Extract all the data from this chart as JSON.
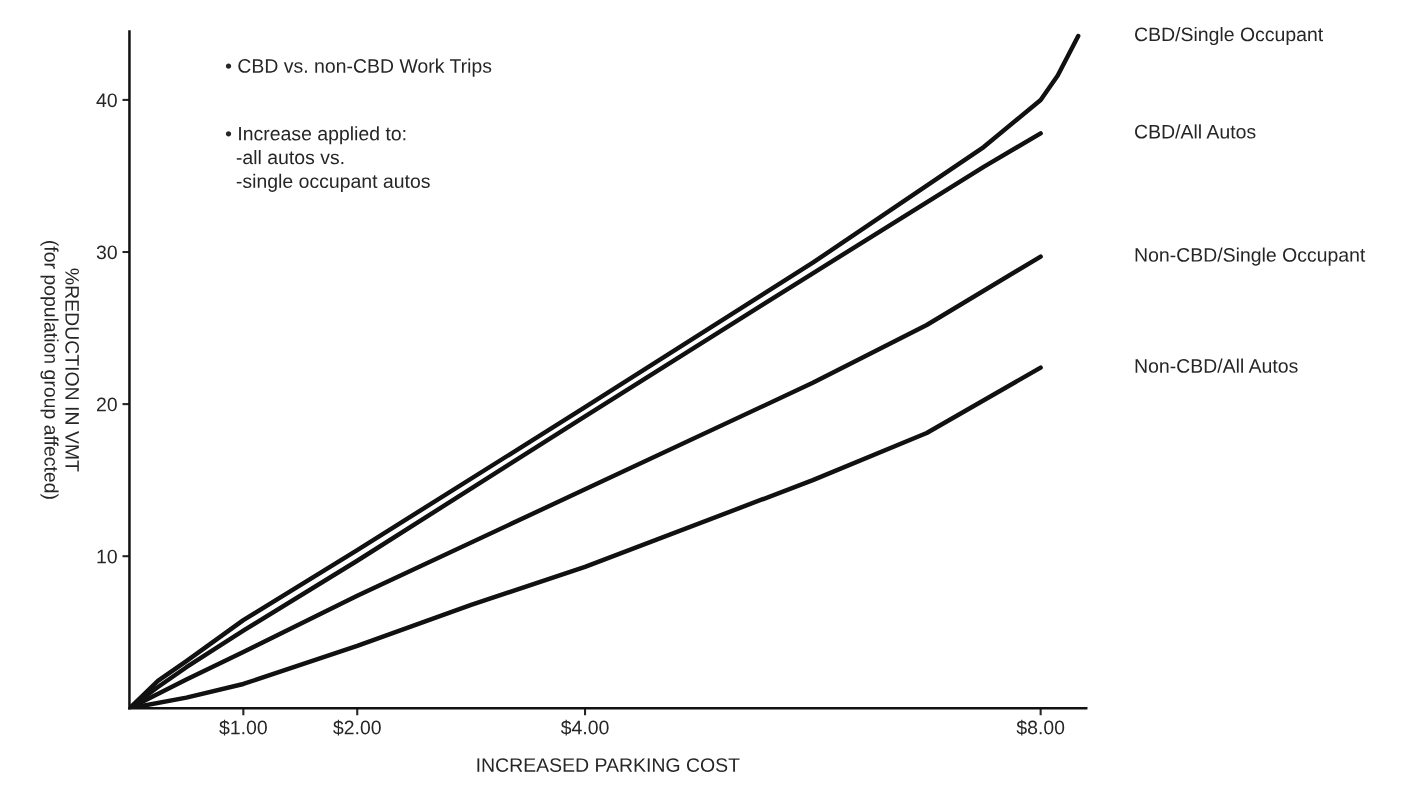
{
  "chart_data": {
    "type": "line",
    "xlabel": "INCREASED PARKING COST",
    "ylabel": "%REDUCTION IN VMT\n(for population group affected)",
    "xlim": [
      0,
      8.4
    ],
    "ylim": [
      0,
      44.5
    ],
    "xticks": [
      {
        "value": 1,
        "label": "$1.00"
      },
      {
        "value": 2,
        "label": "$2.00"
      },
      {
        "value": 4,
        "label": "$4.00"
      },
      {
        "value": 8,
        "label": "$8.00"
      }
    ],
    "yticks": [
      10,
      20,
      30,
      40
    ],
    "grid": false,
    "legend": false,
    "marker": "none",
    "line_style": "solid",
    "annotations": [
      "• CBD vs. non-CBD Work Trips",
      "• Increase applied to:\n  -all autos vs.\n  -single occupant autos"
    ],
    "series": [
      {
        "name": "CBD/Single Occupant",
        "color": "#111111",
        "x": [
          0,
          0.25,
          0.5,
          1,
          2,
          4,
          6,
          7.5,
          8,
          8.15,
          8.33
        ],
        "values": [
          0,
          1.8,
          3.1,
          5.8,
          10.4,
          19.8,
          29.3,
          36.9,
          40,
          41.6,
          44.2
        ]
      },
      {
        "name": "CBD/All Autos",
        "color": "#111111",
        "x": [
          0,
          0.25,
          0.5,
          1,
          2,
          4,
          6,
          7.5,
          8
        ],
        "values": [
          0,
          1.4,
          2.7,
          5.1,
          9.7,
          19.2,
          28.6,
          35.6,
          37.8
        ]
      },
      {
        "name": "Non-CBD/Single Occupant",
        "color": "#111111",
        "x": [
          0,
          0.5,
          1,
          2,
          4,
          6,
          7,
          8
        ],
        "values": [
          0,
          1.9,
          3.7,
          7.4,
          14.4,
          21.4,
          25.2,
          29.7
        ]
      },
      {
        "name": "Non-CBD/All Autos",
        "color": "#111111",
        "x": [
          0,
          0.5,
          1,
          2,
          3,
          4,
          6,
          7,
          8
        ],
        "values": [
          0,
          0.7,
          1.6,
          4.1,
          6.8,
          9.3,
          15.0,
          18.1,
          22.4
        ]
      }
    ]
  }
}
